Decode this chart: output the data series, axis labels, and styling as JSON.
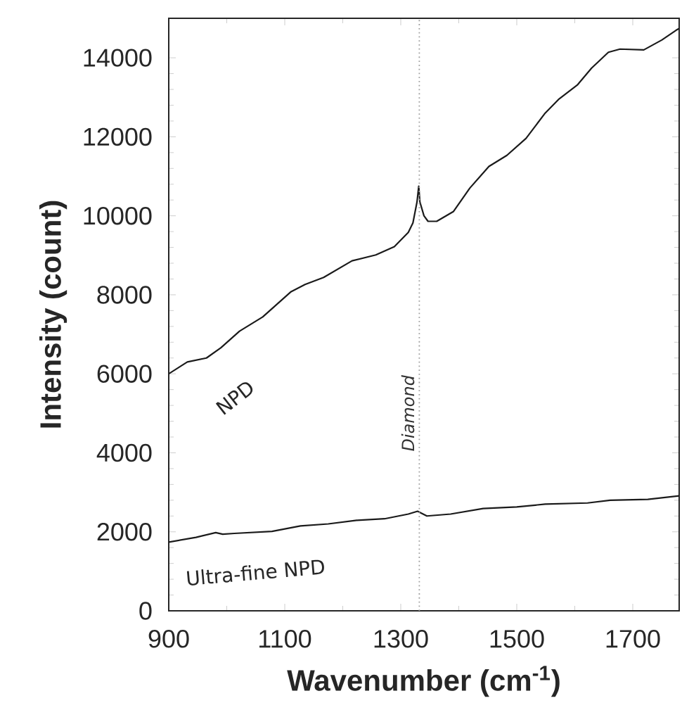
{
  "chart_data": {
    "type": "line",
    "xlabel": "Wavenumber (cm$^{-1}$)",
    "ylabel": "Intensity (count)",
    "xlim": [
      900,
      1780
    ],
    "ylim": [
      0,
      15000
    ],
    "xticks": [
      900,
      1100,
      1300,
      1500,
      1700
    ],
    "yticks": [
      0,
      2000,
      4000,
      6000,
      8000,
      10000,
      12000,
      14000
    ],
    "grid": false,
    "legend": false,
    "marker": "none",
    "line_style": "solid",
    "ref_lines": [
      {
        "axis": "x",
        "value": 1332,
        "label": "Diamond",
        "color": "#a0a0a0",
        "line_style": "dotted"
      }
    ],
    "series": [
      {
        "name": "NPD",
        "color": "#1a1a1a",
        "x": [
          900,
          932,
          965,
          990,
          1022,
          1062,
          1111,
          1135,
          1167,
          1216,
          1257,
          1289,
          1313,
          1321,
          1328,
          1331,
          1333,
          1340,
          1347,
          1362,
          1391,
          1419,
          1452,
          1483,
          1516,
          1549,
          1573,
          1605,
          1629,
          1658,
          1678,
          1719,
          1750,
          1775,
          1780
        ],
        "values": [
          6000,
          6300,
          6400,
          6660,
          7080,
          7440,
          8080,
          8260,
          8440,
          8860,
          9010,
          9220,
          9580,
          9820,
          10350,
          10750,
          10350,
          10000,
          9860,
          9860,
          10110,
          10700,
          11250,
          11530,
          11960,
          12600,
          12960,
          13320,
          13740,
          14140,
          14220,
          14200,
          14450,
          14700,
          14740
        ]
      },
      {
        "name": "Ultra-fine NPD",
        "color": "#1a1a1a",
        "x": [
          900,
          947,
          981,
          993,
          1013,
          1078,
          1127,
          1175,
          1224,
          1272,
          1313,
          1329,
          1345,
          1386,
          1442,
          1500,
          1549,
          1622,
          1661,
          1726,
          1780
        ],
        "values": [
          1740,
          1860,
          1980,
          1940,
          1960,
          2010,
          2150,
          2200,
          2290,
          2330,
          2450,
          2520,
          2400,
          2450,
          2590,
          2630,
          2700,
          2730,
          2800,
          2820,
          2910
        ]
      }
    ]
  }
}
